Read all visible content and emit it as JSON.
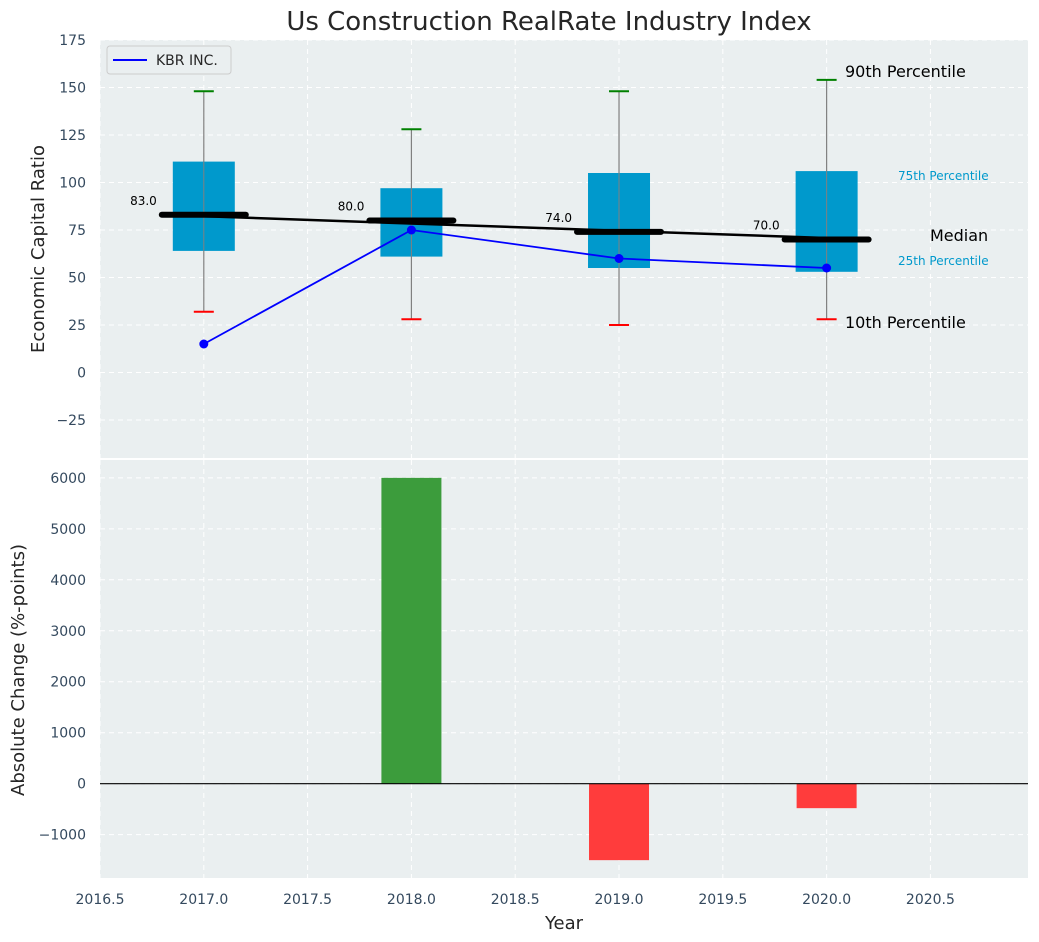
{
  "colors": {
    "panel_bg": "#eaeff0",
    "grid": "#ffffff",
    "box_fill": "#0099cc",
    "median_line": "#000000",
    "whisker": "#808080",
    "p90_cap": "#008000",
    "p10_cap": "#ff0000",
    "company_line": "#0000ff",
    "bar_positive": "#3c9c3c",
    "bar_negative": "#ff3c3c",
    "zero_line": "#000000",
    "pct_small_text": "#0099cc"
  },
  "chart_data": [
    {
      "type": "box",
      "title": "Us Construction RealRate Industry Index",
      "ylabel": "Economic Capital Ratio",
      "xlim": [
        2016.5,
        2020.97
      ],
      "ylim": [
        -45,
        175
      ],
      "yticks": [
        -25,
        0,
        25,
        50,
        75,
        100,
        125,
        150,
        175
      ],
      "ytick_labels": [
        "−25",
        "0",
        "25",
        "50",
        "75",
        "100",
        "125",
        "150",
        "175"
      ],
      "grid": true,
      "legend": {
        "position": "top-left",
        "entries": [
          "KBR INC."
        ]
      },
      "years": [
        2017,
        2018,
        2019,
        2020
      ],
      "p10": [
        32,
        28,
        25,
        28
      ],
      "p25": [
        64,
        61,
        55,
        53
      ],
      "median": [
        83,
        80,
        74,
        70
      ],
      "p75": [
        111,
        97,
        105,
        106
      ],
      "p90": [
        148,
        128,
        148,
        154
      ],
      "median_labels": [
        "83.0",
        "80.0",
        "74.0",
        "70.0"
      ],
      "series": [
        {
          "name": "KBR INC.",
          "x": [
            2017,
            2018,
            2019,
            2020
          ],
          "values": [
            15,
            75,
            60,
            55
          ]
        }
      ],
      "annotations": {
        "p90": "90th Percentile",
        "p75": "75th Percentile",
        "median": "Median",
        "p25": "25th Percentile",
        "p10": "10th Percentile"
      }
    },
    {
      "type": "bar",
      "xlabel": "Year",
      "ylabel": "Absolute Change (%-points)",
      "xlim": [
        2016.5,
        2020.97
      ],
      "ylim": [
        -1850,
        6350
      ],
      "xticks": [
        2016.5,
        2017.0,
        2017.5,
        2018.0,
        2018.5,
        2019.0,
        2019.5,
        2020.0,
        2020.5
      ],
      "xtick_labels": [
        "2016.5",
        "2017.0",
        "2017.5",
        "2018.0",
        "2018.5",
        "2019.0",
        "2019.5",
        "2020.0",
        "2020.5"
      ],
      "yticks": [
        -1000,
        0,
        1000,
        2000,
        3000,
        4000,
        5000,
        6000
      ],
      "ytick_labels": [
        "−1000",
        "0",
        "1000",
        "2000",
        "3000",
        "4000",
        "5000",
        "6000"
      ],
      "grid": true,
      "x": [
        2018,
        2019,
        2020
      ],
      "values": [
        6000,
        -1500,
        -480
      ]
    }
  ]
}
